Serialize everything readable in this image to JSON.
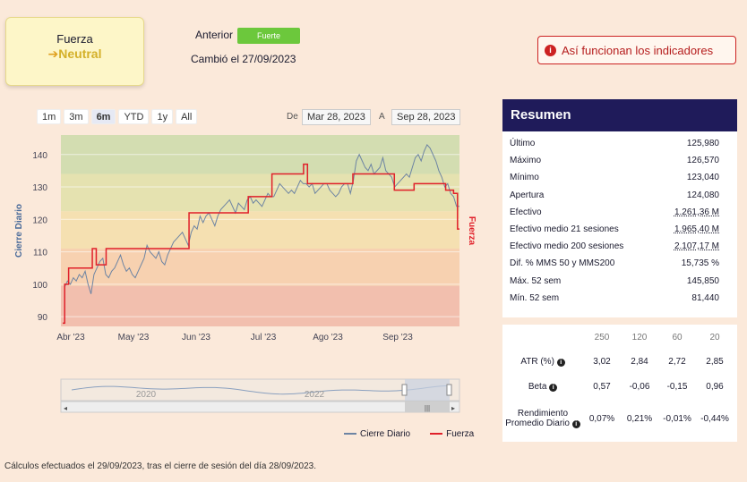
{
  "strength": {
    "title": "Fuerza",
    "arrow": "➔",
    "value": "Neutral"
  },
  "previous": {
    "label": "Anterior",
    "badge": "Fuerte",
    "changed": "Cambió el 27/09/2023"
  },
  "info_button": {
    "icon": "i",
    "label": "Así funcionan los indicadores"
  },
  "range_buttons": [
    "1m",
    "3m",
    "6m",
    "YTD",
    "1y",
    "All"
  ],
  "range_active": "6m",
  "date_range": {
    "from_label": "De",
    "from": "Mar 28, 2023",
    "to_label": "A",
    "to": "Sep 28, 2023"
  },
  "chart_data": {
    "type": "line",
    "ylabel_left": "Cierre Diario",
    "ylabel_right": "Fuerza",
    "y_ticks": [
      90,
      100,
      110,
      120,
      130,
      140
    ],
    "ylim": [
      87,
      146
    ],
    "x_ticks": [
      "Abr '23",
      "May '23",
      "Jun '23",
      "Jul '23",
      "Ago '23",
      "Sep '23"
    ],
    "bands": [
      {
        "from": 87,
        "to": 99.5,
        "color": "#f2bfae"
      },
      {
        "from": 99.5,
        "to": 111,
        "color": "#f7d1b0"
      },
      {
        "from": 111,
        "to": 122.5,
        "color": "#f5e0b1"
      },
      {
        "from": 122.5,
        "to": 134,
        "color": "#e5e2b0"
      },
      {
        "from": 134,
        "to": 146,
        "color": "#d3ddb1"
      }
    ],
    "series": [
      {
        "name": "Cierre Diario",
        "color": "#6d84a3",
        "values": [
          99,
          101,
          100,
          102,
          101,
          103,
          102,
          104,
          100,
          97,
          103,
          105,
          107,
          108,
          103,
          102,
          104,
          105,
          107,
          109,
          106,
          104,
          105,
          103,
          102,
          104,
          106,
          108,
          112,
          110,
          109,
          108,
          110,
          107,
          106,
          109,
          111,
          113,
          114,
          115,
          116,
          114,
          112,
          116,
          118,
          117,
          121,
          119,
          121,
          122,
          120,
          118,
          121,
          123,
          124,
          125,
          126,
          124,
          122,
          125,
          124,
          123,
          126,
          127,
          125,
          126,
          125,
          124,
          126,
          128,
          127,
          127,
          129,
          131,
          130,
          129,
          128,
          129,
          128,
          130,
          132,
          131,
          131,
          130,
          131,
          128,
          129,
          130,
          131,
          131,
          129,
          128,
          127,
          128,
          130,
          131,
          131,
          128,
          132,
          138,
          140,
          138,
          136,
          135,
          137,
          134,
          135,
          136,
          139,
          135,
          134,
          133,
          130,
          131,
          132,
          133,
          134,
          133,
          136,
          139,
          140,
          138,
          141,
          143,
          142,
          140,
          138,
          135,
          133,
          130,
          131,
          128,
          127,
          124,
          124
        ]
      },
      {
        "name": "Fuerza",
        "color": "#e0202a",
        "values": [
          88,
          100,
          100,
          105,
          105,
          105,
          105,
          105,
          105,
          105,
          105,
          105,
          105,
          105,
          105,
          111,
          111,
          106,
          106,
          106,
          106,
          106,
          111,
          111,
          111,
          111,
          111,
          111,
          111,
          111,
          111,
          111,
          111,
          111,
          111,
          111,
          111,
          111,
          111,
          111,
          111,
          111,
          111,
          111,
          111,
          111,
          111,
          111,
          111,
          111,
          111,
          111,
          111,
          111,
          111,
          111,
          111,
          111,
          111,
          111,
          111,
          111,
          111,
          111,
          122,
          122,
          122,
          122,
          122,
          122,
          122,
          122,
          122,
          122,
          122,
          122,
          122,
          122,
          122,
          122,
          122,
          122,
          122,
          122,
          122,
          122,
          122,
          122,
          122,
          122,
          122,
          122,
          122,
          122,
          127,
          127,
          127,
          127,
          127,
          127,
          127,
          127,
          127,
          127,
          127,
          127,
          134,
          134,
          134,
          134,
          134,
          134,
          134,
          134,
          134,
          134,
          134,
          134,
          134,
          134,
          134,
          134,
          137,
          137,
          131,
          131,
          131,
          131,
          131,
          131,
          131,
          131,
          131,
          131,
          131,
          131,
          131,
          131,
          131,
          131,
          131,
          131,
          131,
          131,
          131,
          131,
          131,
          134,
          134,
          134,
          134,
          134,
          134,
          134,
          134,
          134,
          134,
          134,
          134,
          134,
          134,
          134,
          134,
          134,
          134,
          134,
          134,
          134,
          129,
          129,
          129,
          129,
          129,
          129,
          129,
          129,
          129,
          129,
          131,
          131,
          131,
          131,
          131,
          131,
          131,
          131,
          131,
          131,
          131,
          131,
          131,
          131,
          131,
          131,
          129,
          129,
          129,
          129,
          128,
          128,
          117,
          117
        ]
      }
    ],
    "navigator_labels": [
      "2020",
      "2022"
    ]
  },
  "legend": [
    {
      "name": "Cierre Diario",
      "color": "#6d84a3"
    },
    {
      "name": "Fuerza",
      "color": "#e0202a"
    }
  ],
  "summary": {
    "title": "Resumen",
    "rows": [
      {
        "label": "Último",
        "value": "125,980",
        "dotted": false
      },
      {
        "label": "Máximo",
        "value": "126,570",
        "dotted": false
      },
      {
        "label": "Mínimo",
        "value": "123,040",
        "dotted": false
      },
      {
        "label": "Apertura",
        "value": "124,080",
        "dotted": false
      },
      {
        "label": "Efectivo",
        "value": "1.261,36 M",
        "dotted": true
      },
      {
        "label": "Efectivo medio 21 sesiones",
        "value": "1.965,40 M",
        "dotted": true
      },
      {
        "label": "Efectivo medio 200 sesiones",
        "value": "2.107,17 M",
        "dotted": true
      },
      {
        "label": "Dif. % MMS 50 y MMS200",
        "value": "15,735 %",
        "dotted": false
      },
      {
        "label": "Máx. 52 sem",
        "value": "145,850",
        "dotted": false
      },
      {
        "label": "Mín. 52 sem",
        "value": "81,440",
        "dotted": false
      }
    ]
  },
  "metrics": {
    "columns": [
      "250",
      "120",
      "60",
      "20"
    ],
    "rows": [
      {
        "label": "ATR (%)",
        "values": [
          "3,02",
          "2,84",
          "2,72",
          "2,85"
        ]
      },
      {
        "label": "Beta",
        "values": [
          "0,57",
          "-0,06",
          "-0,15",
          "0,96"
        ]
      },
      {
        "label": "Rendimiento Promedio Diario",
        "values": [
          "0,07%",
          "0,21%",
          "-0,01%",
          "-0,44%"
        ]
      }
    ]
  },
  "footnote": "Cálculos efectuados el 29/09/2023, tras el cierre de sesión del día 28/09/2023."
}
